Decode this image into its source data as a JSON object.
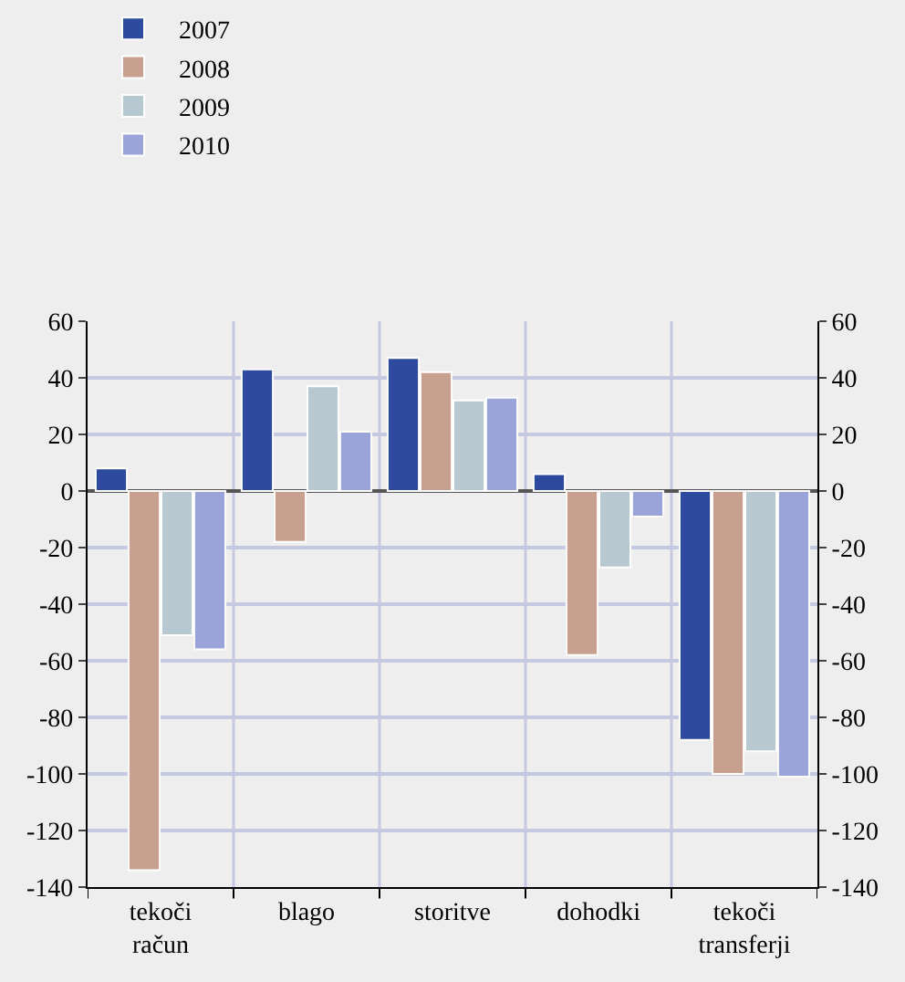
{
  "chart_data": {
    "type": "bar",
    "categories": [
      "tekoči račun",
      "blago",
      "storitve",
      "dohodki",
      "tekoči transferji"
    ],
    "series": [
      {
        "name": "2007",
        "color": "#2e4a9e",
        "values": [
          8,
          43,
          47,
          6,
          -88
        ]
      },
      {
        "name": "2008",
        "color": "#c8a090",
        "values": [
          -134,
          -18,
          42,
          -58,
          -100
        ]
      },
      {
        "name": "2009",
        "color": "#b8c8d0",
        "values": [
          -51,
          37,
          32,
          -27,
          -92
        ]
      },
      {
        "name": "2010",
        "color": "#9aa4d8",
        "values": [
          -56,
          21,
          33,
          -9,
          -101
        ]
      }
    ],
    "ylim": [
      -140,
      60
    ],
    "yticks": [
      -140,
      -120,
      -100,
      -80,
      -60,
      -40,
      -20,
      0,
      20,
      40,
      60
    ],
    "y2lim": [
      -140,
      60
    ],
    "y2ticks": [
      -140,
      -120,
      -100,
      -80,
      -60,
      -40,
      -20,
      0,
      20,
      40,
      60
    ],
    "grid": true,
    "legend": "top left"
  }
}
